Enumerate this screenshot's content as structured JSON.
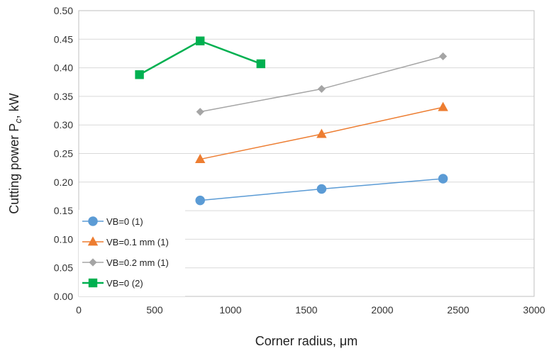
{
  "chart_data": {
    "type": "line",
    "title": "",
    "xlabel": "Corner radius, μm",
    "ylabel_main": "Cutting power P",
    "ylabel_sub": "c",
    "ylabel_tail": ", kW",
    "xlim": [
      0,
      3000
    ],
    "ylim": [
      0,
      0.5
    ],
    "xticks": [
      "0",
      "500",
      "1000",
      "1500",
      "2000",
      "2500",
      "3000"
    ],
    "yticks": [
      "0.00",
      "0.05",
      "0.10",
      "0.15",
      "0.20",
      "0.25",
      "0.30",
      "0.35",
      "0.40",
      "0.45",
      "0.50"
    ],
    "grid": "horizontal",
    "legend_position": "bottom-left",
    "series": [
      {
        "name": "VB=0 (1)",
        "color": "#5B9BD5",
        "marker": "circle",
        "x": [
          800,
          1600,
          2400
        ],
        "y": [
          0.168,
          0.188,
          0.206
        ]
      },
      {
        "name": "VB=0.1 mm (1)",
        "color": "#ED7D31",
        "marker": "triangle",
        "x": [
          800,
          1600,
          2400
        ],
        "y": [
          0.24,
          0.284,
          0.331
        ]
      },
      {
        "name": "VB=0.2 mm (1)",
        "color": "#A5A5A5",
        "marker": "diamond",
        "x": [
          800,
          1600,
          2400
        ],
        "y": [
          0.323,
          0.363,
          0.42
        ]
      },
      {
        "name": "VB=0 (2)",
        "color": "#00B050",
        "marker": "square",
        "x": [
          400,
          800,
          1200
        ],
        "y": [
          0.388,
          0.447,
          0.407
        ]
      }
    ]
  }
}
